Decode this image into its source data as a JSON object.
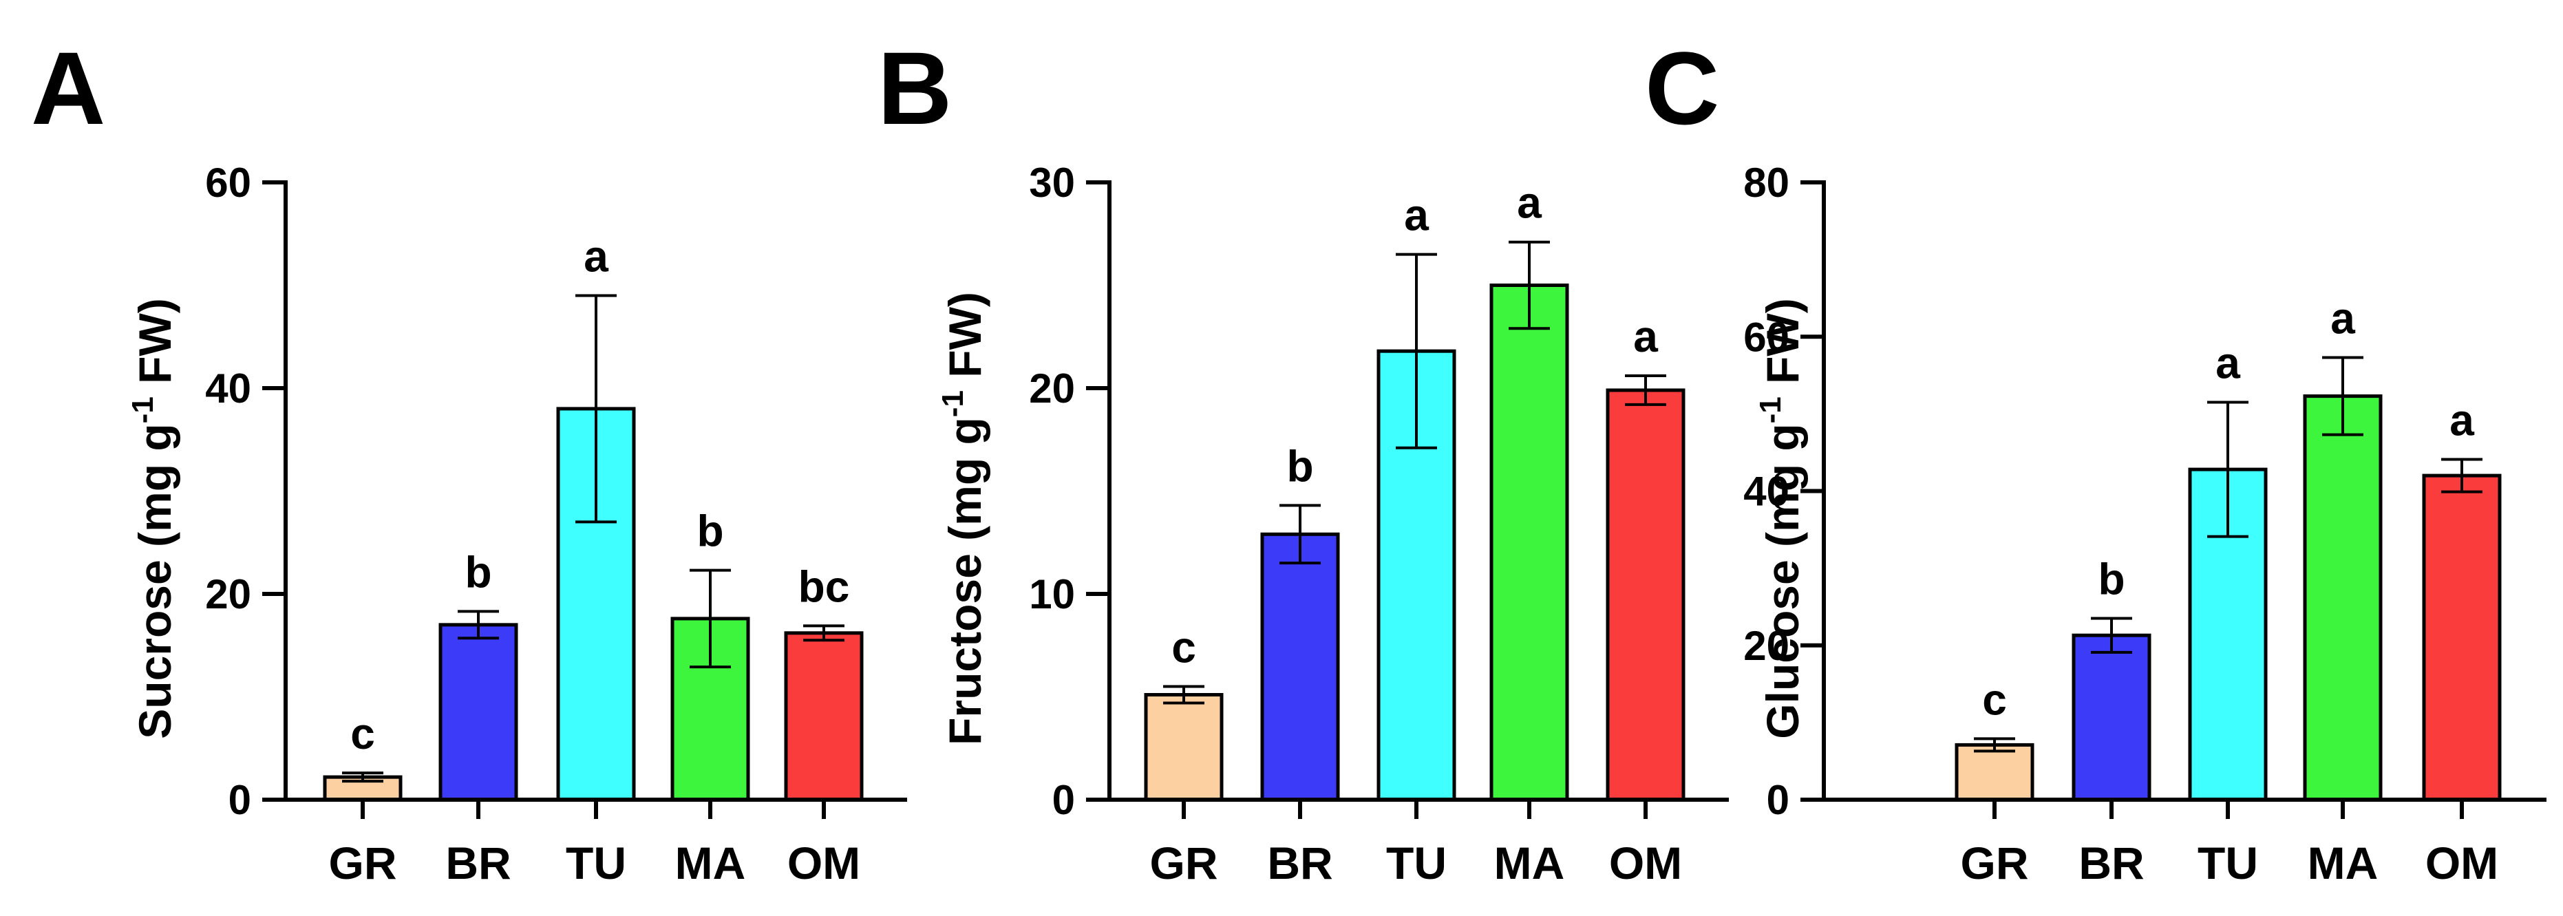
{
  "figure": {
    "panels": [
      "A",
      "B",
      "C"
    ]
  },
  "chart_data": [
    {
      "panel": "A",
      "type": "bar",
      "title": "",
      "xlabel": "",
      "ylabel_main": "Sucrose (mg g",
      "ylabel_sup": "-1",
      "ylabel_tail": " FW)",
      "categories": [
        "GR",
        "BR",
        "TU",
        "MA",
        "OM"
      ],
      "values": [
        2.2,
        17.0,
        38.0,
        17.6,
        16.2
      ],
      "errors": [
        0.4,
        1.3,
        11.0,
        4.7,
        0.7
      ],
      "significance": [
        "c",
        "b",
        "a",
        "b",
        "bc"
      ],
      "colors": [
        "#FCD0A1",
        "#3C3CF8",
        "#40FFFF",
        "#3DF53D",
        "#FB3C3C"
      ],
      "ylim": [
        0,
        60
      ],
      "yticks": [
        0,
        20,
        40,
        60
      ],
      "ytick_labels": [
        "0",
        "20",
        "40",
        "60"
      ],
      "grid": false
    },
    {
      "panel": "B",
      "type": "bar",
      "title": "",
      "xlabel": "",
      "ylabel_main": "Fructose (mg g",
      "ylabel_sup": "-1",
      "ylabel_tail": " FW)",
      "categories": [
        "GR",
        "BR",
        "TU",
        "MA",
        "OM"
      ],
      "values": [
        5.1,
        12.9,
        21.8,
        25.0,
        19.9
      ],
      "errors": [
        0.4,
        1.4,
        4.7,
        2.1,
        0.7
      ],
      "significance": [
        "c",
        "b",
        "a",
        "a",
        "a"
      ],
      "colors": [
        "#FCD0A1",
        "#3C3CF8",
        "#40FFFF",
        "#3DF53D",
        "#FB3C3C"
      ],
      "ylim": [
        0,
        30
      ],
      "yticks": [
        0,
        10,
        20,
        30
      ],
      "ytick_labels": [
        "0",
        "10",
        "20",
        "30"
      ],
      "grid": false
    },
    {
      "panel": "C",
      "type": "bar",
      "title": "",
      "xlabel": "",
      "ylabel_main": "Glucose (mg g",
      "ylabel_sup": "-1",
      "ylabel_tail": " FW)",
      "categories": [
        "GR",
        "BR",
        "TU",
        "MA",
        "OM"
      ],
      "values": [
        7.1,
        21.3,
        42.8,
        52.3,
        42.0
      ],
      "errors": [
        0.8,
        2.2,
        8.7,
        5.0,
        2.1
      ],
      "significance": [
        "c",
        "b",
        "a",
        "a",
        "a"
      ],
      "colors": [
        "#FCD0A1",
        "#3C3CF8",
        "#40FFFF",
        "#3DF53D",
        "#FB3C3C"
      ],
      "ylim": [
        0,
        80
      ],
      "yticks": [
        0,
        20,
        40,
        60,
        80
      ],
      "ytick_labels": [
        "0",
        "20",
        "40",
        "60",
        "80"
      ],
      "grid": false
    }
  ]
}
